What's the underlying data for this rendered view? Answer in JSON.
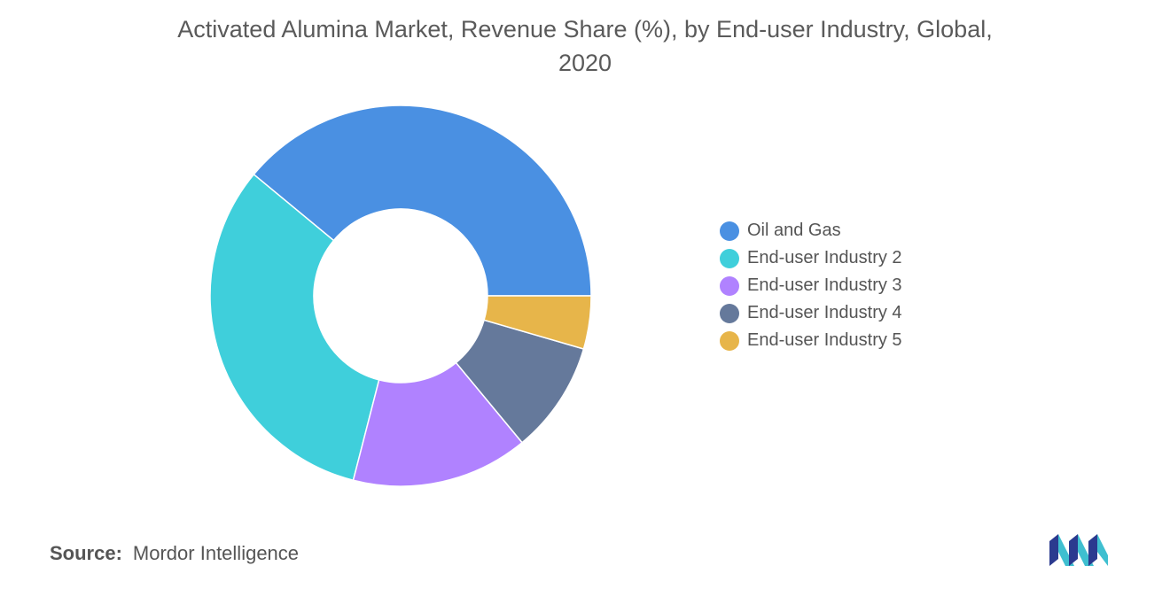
{
  "chart_data": {
    "type": "pie",
    "variant": "donut",
    "title": "Activated Alumina Market, Revenue Share (%), by End-user Industry, Global,",
    "title_line2": "2020",
    "categories": [
      "Oil and Gas",
      "End-user Industry 2",
      "End-user Industry 3",
      "End-user Industry 4",
      "End-user Industry 5"
    ],
    "values": [
      39,
      32,
      15,
      9.5,
      4.5
    ],
    "colors": [
      "#4a90e2",
      "#3fcfdb",
      "#b082ff",
      "#65799b",
      "#e7b54a"
    ],
    "legend_position": "right",
    "data_labels": false
  },
  "source": {
    "label": "Source:",
    "text": "Mordor Intelligence"
  },
  "logo": {
    "icon": "mordor-intelligence-logo",
    "colors": [
      "#2b3a8f",
      "#3fbfd0"
    ]
  }
}
